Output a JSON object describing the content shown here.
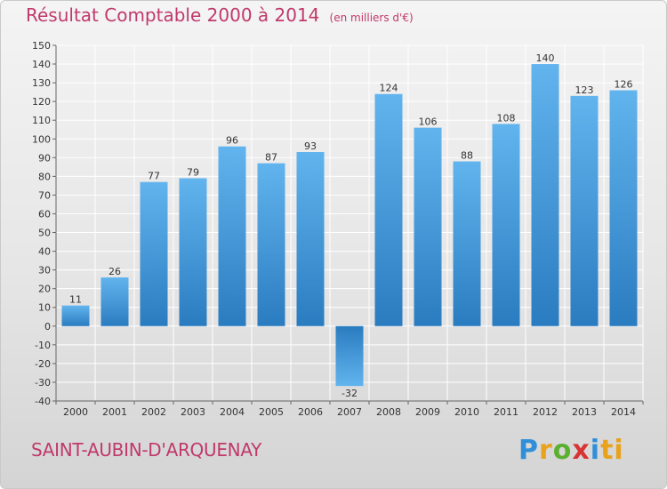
{
  "header": {
    "title": "Résultat Comptable 2000 à 2014",
    "subtitle": "(en milliers d'€)"
  },
  "footer": {
    "commune": "SAINT-AUBIN-D'ARQUENAY",
    "logo_letters": [
      "P",
      "r",
      "o",
      "x",
      "i",
      "ti"
    ]
  },
  "colors": {
    "title": "#c0396b",
    "bar_top": "#62b4ee",
    "bar_bottom": "#2a7cc0",
    "grid": "#ffffff"
  },
  "chart_data": {
    "type": "bar",
    "title": "Résultat Comptable 2000 à 2014",
    "unit_label": "(en milliers d'€)",
    "xlabel": "",
    "ylabel": "",
    "categories": [
      "2000",
      "2001",
      "2002",
      "2003",
      "2004",
      "2005",
      "2006",
      "2007",
      "2008",
      "2009",
      "2010",
      "2011",
      "2012",
      "2013",
      "2014"
    ],
    "values": [
      11,
      26,
      77,
      79,
      96,
      87,
      93,
      -32,
      124,
      106,
      88,
      108,
      140,
      123,
      126
    ],
    "ylim": [
      -40,
      150
    ],
    "yticks": [
      -40,
      -30,
      -20,
      -10,
      0,
      10,
      20,
      30,
      40,
      50,
      60,
      70,
      80,
      90,
      100,
      110,
      120,
      130,
      140,
      150
    ],
    "grid": true
  }
}
